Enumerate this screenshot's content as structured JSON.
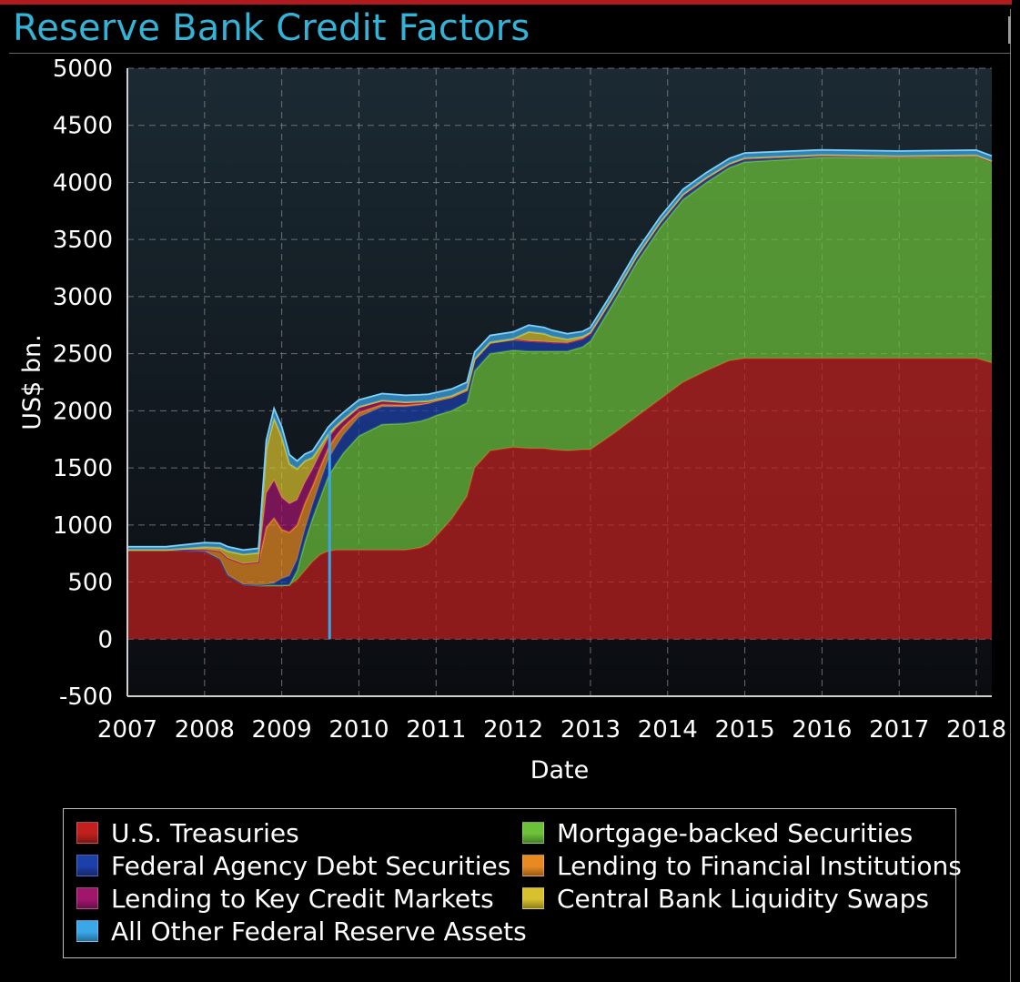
{
  "title": "Reserve Bank Credit Factors",
  "chart_data": {
    "type": "area",
    "stacked": true,
    "title": "Reserve Bank Credit Factors",
    "xlabel": "Date",
    "ylabel": "US$ bn.",
    "xlim": [
      2007.0,
      2018.2
    ],
    "ylim": [
      -500,
      5000
    ],
    "x_ticks": [
      "2007",
      "2008",
      "2009",
      "2010",
      "2011",
      "2012",
      "2013",
      "2014",
      "2015",
      "2016",
      "2017",
      "2018"
    ],
    "y_ticks": [
      "5000",
      "4500",
      "4000",
      "3500",
      "3000",
      "2500",
      "2000",
      "1500",
      "1000",
      "500",
      "0",
      "-500"
    ],
    "grid": true,
    "legend_position": "bottom",
    "annotations": [
      {
        "type": "vertical-line",
        "x": 2009.62,
        "color": "#3aa8e8"
      }
    ],
    "x": [
      2007.0,
      2007.5,
      2008.0,
      2008.2,
      2008.3,
      2008.5,
      2008.7,
      2008.8,
      2008.9,
      2009.0,
      2009.1,
      2009.2,
      2009.3,
      2009.4,
      2009.5,
      2009.6,
      2009.7,
      2009.8,
      2010.0,
      2010.3,
      2010.6,
      2010.8,
      2010.9,
      2011.0,
      2011.2,
      2011.4,
      2011.5,
      2011.7,
      2012.0,
      2012.2,
      2012.4,
      2012.5,
      2012.7,
      2012.9,
      2013.0,
      2013.3,
      2013.6,
      2013.9,
      2014.2,
      2014.5,
      2014.8,
      2015.0,
      2016.0,
      2017.0,
      2018.0,
      2018.2
    ],
    "series": [
      {
        "name": "U.S. Treasuries",
        "color": "#c0201e",
        "values": [
          780,
          780,
          770,
          700,
          560,
          480,
          470,
          470,
          470,
          470,
          475,
          520,
          600,
          680,
          740,
          770,
          780,
          780,
          780,
          780,
          780,
          800,
          830,
          900,
          1050,
          1250,
          1500,
          1650,
          1680,
          1670,
          1670,
          1660,
          1650,
          1660,
          1660,
          1800,
          1950,
          2100,
          2250,
          2350,
          2440,
          2460,
          2460,
          2460,
          2460,
          2420
        ]
      },
      {
        "name": "Mortgage-backed Securities",
        "color": "#6cc03a",
        "values": [
          0,
          0,
          0,
          0,
          0,
          0,
          0,
          0,
          0,
          0,
          0,
          80,
          250,
          380,
          500,
          650,
          750,
          850,
          1000,
          1100,
          1110,
          1110,
          1100,
          1060,
          950,
          820,
          850,
          850,
          850,
          850,
          850,
          860,
          870,
          900,
          950,
          1150,
          1350,
          1500,
          1600,
          1650,
          1690,
          1720,
          1760,
          1760,
          1770,
          1760
        ]
      },
      {
        "name": "Federal Agency Debt Securities",
        "color": "#1c3fa8",
        "values": [
          0,
          0,
          0,
          0,
          0,
          0,
          5,
          10,
          20,
          60,
          80,
          100,
          110,
          120,
          140,
          150,
          155,
          160,
          165,
          155,
          145,
          140,
          135,
          130,
          120,
          110,
          100,
          95,
          95,
          90,
          85,
          80,
          75,
          70,
          65,
          55,
          50,
          45,
          40,
          35,
          30,
          28,
          15,
          5,
          3,
          2
        ]
      },
      {
        "name": "Lending to Financial Institutions",
        "color": "#e88a22",
        "values": [
          0,
          0,
          15,
          70,
          150,
          180,
          200,
          500,
          570,
          430,
          380,
          300,
          230,
          160,
          130,
          100,
          90,
          70,
          40,
          20,
          15,
          10,
          5,
          0,
          0,
          0,
          0,
          0,
          0,
          0,
          0,
          0,
          0,
          0,
          0,
          0,
          0,
          0,
          0,
          0,
          0,
          0,
          0,
          0,
          0,
          0
        ]
      },
      {
        "name": "Lending to Key Credit Markets",
        "color": "#a0166d",
        "values": [
          0,
          0,
          0,
          0,
          0,
          0,
          0,
          300,
          330,
          280,
          250,
          220,
          180,
          150,
          120,
          90,
          70,
          50,
          40,
          30,
          20,
          20,
          15,
          10,
          10,
          10,
          5,
          5,
          5,
          0,
          0,
          0,
          0,
          0,
          0,
          0,
          0,
          0,
          0,
          0,
          0,
          0,
          0,
          0,
          0,
          0
        ]
      },
      {
        "name": "Central Bank Liquidity Swaps",
        "color": "#d8c12c",
        "values": [
          0,
          0,
          20,
          30,
          60,
          80,
          80,
          380,
          540,
          530,
          350,
          270,
          190,
          100,
          60,
          35,
          20,
          15,
          10,
          5,
          5,
          0,
          0,
          0,
          0,
          0,
          0,
          0,
          0,
          80,
          70,
          50,
          30,
          20,
          10,
          5,
          5,
          5,
          5,
          5,
          5,
          5,
          5,
          5,
          5,
          5
        ]
      },
      {
        "name": "All Other Federal Reserve Assets",
        "color": "#3aa8e8",
        "values": [
          30,
          30,
          40,
          40,
          40,
          40,
          40,
          80,
          90,
          90,
          80,
          70,
          60,
          60,
          60,
          60,
          60,
          60,
          60,
          60,
          60,
          60,
          60,
          60,
          60,
          60,
          60,
          60,
          60,
          60,
          55,
          55,
          50,
          45,
          45,
          45,
          45,
          45,
          45,
          45,
          45,
          45,
          45,
          45,
          45,
          45
        ]
      }
    ]
  },
  "legend": {
    "items": [
      {
        "label": "U.S. Treasuries",
        "color": "#c0201e"
      },
      {
        "label": "Mortgage-backed Securities",
        "color": "#6cc03a"
      },
      {
        "label": "Federal Agency Debt Securities",
        "color": "#1c3fa8"
      },
      {
        "label": "Lending to Financial Institutions",
        "color": "#e88a22"
      },
      {
        "label": "Lending to Key Credit Markets",
        "color": "#a0166d"
      },
      {
        "label": "Central Bank Liquidity Swaps",
        "color": "#d8c12c"
      },
      {
        "label": "All Other Federal Reserve Assets",
        "color": "#3aa8e8"
      }
    ]
  }
}
